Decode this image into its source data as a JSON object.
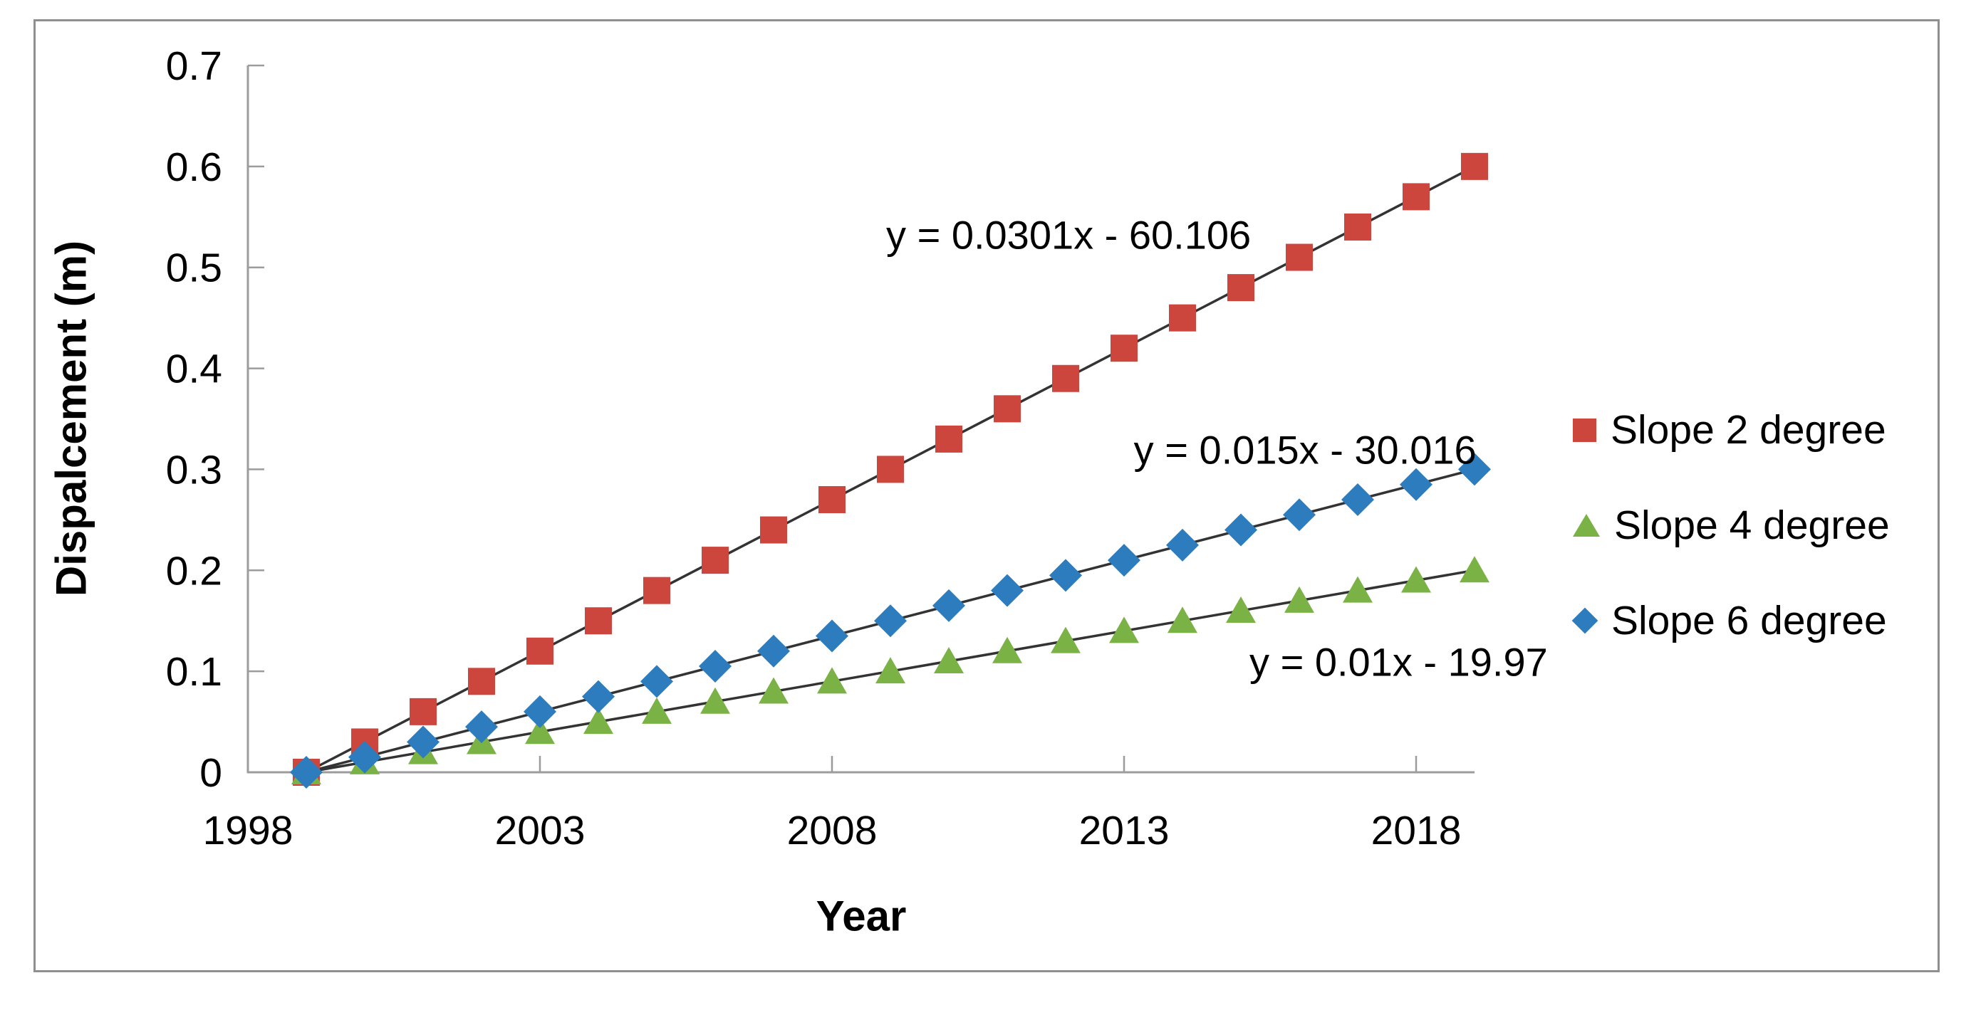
{
  "chart_data": {
    "type": "scatter",
    "title": "",
    "xlabel": "Year",
    "ylabel": "Dispalcement (m)",
    "xlim": [
      1998,
      2019
    ],
    "ylim": [
      0,
      0.7
    ],
    "grid": false,
    "x_tick_labels": [
      "1998",
      "2003",
      "2008",
      "2013",
      "2018"
    ],
    "x_tick_values": [
      1998,
      2003,
      2008,
      2013,
      2018
    ],
    "y_tick_labels": [
      "0",
      "0.1",
      "0.2",
      "0.3",
      "0.4",
      "0.5",
      "0.6",
      "0.7"
    ],
    "y_tick_values": [
      0,
      0.1,
      0.2,
      0.3,
      0.4,
      0.5,
      0.6,
      0.7
    ],
    "x": [
      1999,
      2000,
      2001,
      2002,
      2003,
      2004,
      2005,
      2006,
      2007,
      2008,
      2009,
      2010,
      2011,
      2012,
      2013,
      2014,
      2015,
      2016,
      2017,
      2018,
      2019
    ],
    "series": [
      {
        "name": "Slope 2 degree",
        "marker": "square",
        "color": "#cc463e",
        "trendline": true,
        "values": [
          0,
          0.03,
          0.06,
          0.09,
          0.12,
          0.15,
          0.18,
          0.21,
          0.24,
          0.27,
          0.3,
          0.33,
          0.36,
          0.39,
          0.42,
          0.45,
          0.48,
          0.51,
          0.54,
          0.57,
          0.6
        ]
      },
      {
        "name": "Slope 4 degree",
        "marker": "triangle",
        "color": "#7ab245",
        "trendline": true,
        "values": [
          0,
          0.01,
          0.02,
          0.03,
          0.04,
          0.05,
          0.06,
          0.07,
          0.08,
          0.09,
          0.1,
          0.11,
          0.12,
          0.13,
          0.14,
          0.15,
          0.16,
          0.17,
          0.18,
          0.19,
          0.2
        ]
      },
      {
        "name": "Slope 6 degree",
        "marker": "diamond",
        "color": "#2d7cbd",
        "trendline": true,
        "values": [
          0,
          0.015,
          0.03,
          0.045,
          0.06,
          0.075,
          0.09,
          0.105,
          0.12,
          0.135,
          0.15,
          0.165,
          0.18,
          0.195,
          0.21,
          0.225,
          0.24,
          0.255,
          0.27,
          0.285,
          0.3
        ]
      }
    ],
    "annotations": [
      {
        "text": "y = 0.0301x - 60.106",
        "series": "Slope 2 degree",
        "x": 2012.05,
        "y": 0.532
      },
      {
        "text": "y = 0.015x - 30.016",
        "series": "Slope 6 degree",
        "x": 2016.1,
        "y": 0.319
      },
      {
        "text": "y = 0.01x - 19.97",
        "series": "Slope 4 degree",
        "x": 2017.7,
        "y": 0.109
      }
    ],
    "legend": {
      "position": "right",
      "items": [
        "Slope 2 degree",
        "Slope 4 degree",
        "Slope 6 degree"
      ]
    },
    "colors": {
      "axis": "#9c9c9c",
      "frame_border": "#8f8f8f",
      "trendline": "#333333",
      "text": "#000000"
    }
  }
}
